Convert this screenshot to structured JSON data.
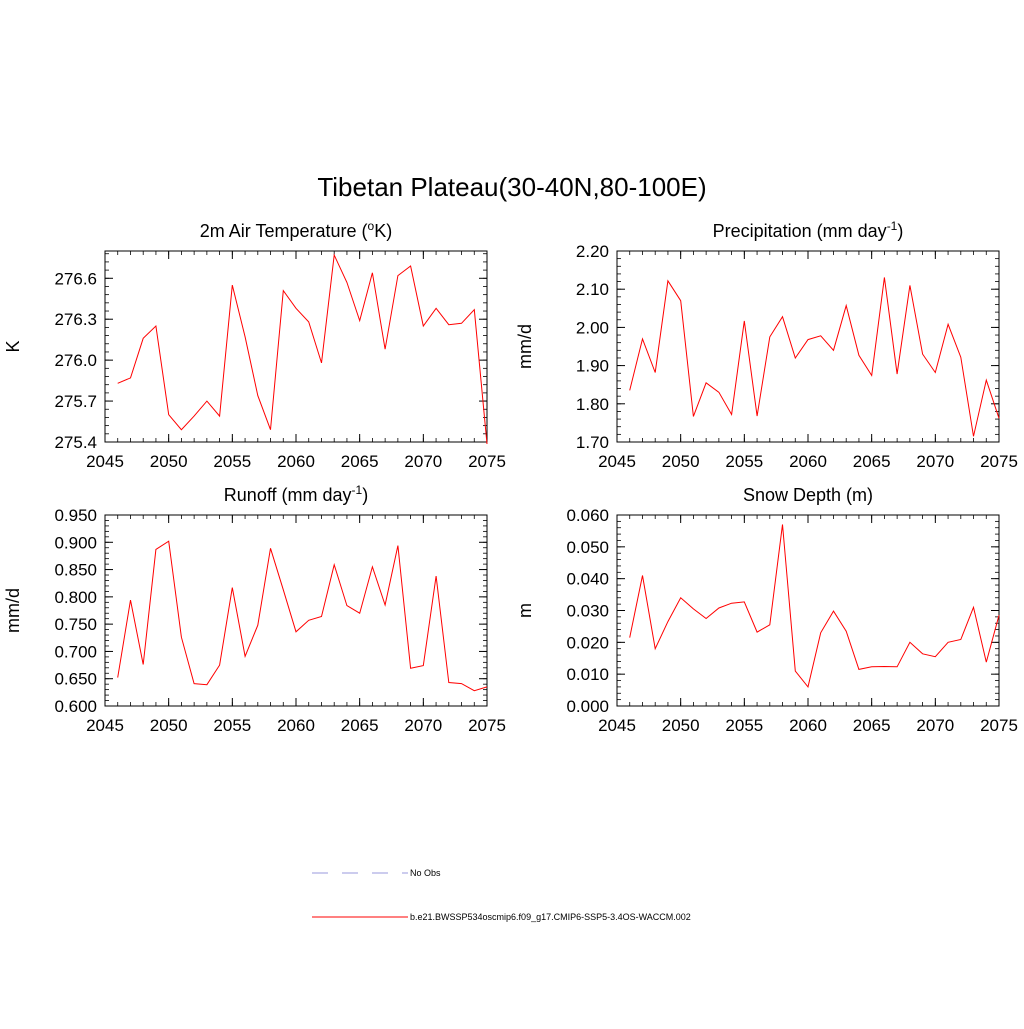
{
  "figure_title": "Tibetan Plateau(30-40N,80-100E)",
  "colors": {
    "series": "#ff0000",
    "obs": "#9999dd",
    "axis": "#000000"
  },
  "legend": [
    {
      "label": "No Obs",
      "style": "dashed",
      "color": "#9999dd"
    },
    {
      "label": "b.e21.BWSSP534oscmip6.f09_g17.CMIP6-SSP5-3.4OS-WACCM.002",
      "style": "solid",
      "color": "#ff0000"
    }
  ],
  "chart_data": [
    {
      "type": "line",
      "title": "2m Air Temperature (",
      "title_sup": "o",
      "title_after": "K)",
      "ylabel": "K",
      "xlim": [
        2045,
        2075
      ],
      "ylim": [
        275.4,
        276.8
      ],
      "xticks": [
        2045,
        2050,
        2055,
        2060,
        2065,
        2070,
        2075
      ],
      "xtick_labels": [
        "2045",
        "2050",
        "2055",
        "2060",
        "2065",
        "2070",
        "2075"
      ],
      "yticks": [
        275.4,
        275.7,
        276.0,
        276.3,
        276.6
      ],
      "ytick_labels": [
        "275.4",
        "275.7",
        "276.0",
        "276.3",
        "276.6"
      ],
      "series": [
        {
          "x": [
            2046,
            2047,
            2048,
            2049,
            2050,
            2051,
            2052,
            2053,
            2054,
            2055,
            2056,
            2057,
            2058,
            2059,
            2060,
            2061,
            2062,
            2063,
            2064,
            2065,
            2066,
            2067,
            2068,
            2069,
            2070,
            2071,
            2072,
            2073,
            2074,
            2075
          ],
          "values": [
            275.83,
            275.87,
            276.16,
            276.25,
            275.6,
            275.49,
            275.59,
            275.7,
            275.59,
            276.55,
            276.17,
            275.74,
            275.49,
            276.51,
            276.38,
            276.28,
            275.98,
            276.77,
            276.57,
            276.29,
            276.64,
            276.08,
            276.62,
            276.69,
            276.25,
            276.38,
            276.26,
            276.27,
            276.37,
            275.37
          ]
        }
      ]
    },
    {
      "type": "line",
      "title": "Precipitation (mm day",
      "title_sup": "-1",
      "title_after": ")",
      "ylabel": "mm/d",
      "xlim": [
        2045,
        2075
      ],
      "ylim": [
        1.7,
        2.2
      ],
      "xticks": [
        2045,
        2050,
        2055,
        2060,
        2065,
        2070,
        2075
      ],
      "xtick_labels": [
        "2045",
        "2050",
        "2055",
        "2060",
        "2065",
        "2070",
        "2075"
      ],
      "yticks": [
        1.7,
        1.8,
        1.9,
        2.0,
        2.1,
        2.2
      ],
      "ytick_labels": [
        "1.70",
        "1.80",
        "1.90",
        "2.00",
        "2.10",
        "2.20"
      ],
      "series": [
        {
          "x": [
            2046,
            2047,
            2048,
            2049,
            2050,
            2051,
            2052,
            2053,
            2054,
            2055,
            2056,
            2057,
            2058,
            2059,
            2060,
            2061,
            2062,
            2063,
            2064,
            2065,
            2066,
            2067,
            2068,
            2069,
            2070,
            2071,
            2072,
            2073,
            2074,
            2075
          ],
          "values": [
            1.835,
            1.97,
            1.882,
            2.122,
            2.07,
            1.767,
            1.855,
            1.83,
            1.772,
            2.017,
            1.768,
            1.975,
            2.028,
            1.92,
            1.968,
            1.978,
            1.94,
            2.057,
            1.927,
            1.874,
            2.131,
            1.878,
            2.11,
            1.93,
            1.882,
            2.008,
            1.922,
            1.715,
            1.862,
            1.762
          ]
        }
      ]
    },
    {
      "type": "line",
      "title": "Runoff (mm day",
      "title_sup": "-1",
      "title_after": ")",
      "ylabel": "mm/d",
      "xlim": [
        2045,
        2075
      ],
      "ylim": [
        0.6,
        0.95
      ],
      "xticks": [
        2045,
        2050,
        2055,
        2060,
        2065,
        2070,
        2075
      ],
      "xtick_labels": [
        "2045",
        "2050",
        "2055",
        "2060",
        "2065",
        "2070",
        "2075"
      ],
      "yticks": [
        0.6,
        0.65,
        0.7,
        0.75,
        0.8,
        0.85,
        0.9,
        0.95
      ],
      "ytick_labels": [
        "0.600",
        "0.650",
        "0.700",
        "0.750",
        "0.800",
        "0.850",
        "0.900",
        "0.950"
      ],
      "series": [
        {
          "x": [
            2046,
            2047,
            2048,
            2049,
            2050,
            2051,
            2052,
            2053,
            2054,
            2055,
            2056,
            2057,
            2058,
            2059,
            2060,
            2061,
            2062,
            2063,
            2064,
            2065,
            2066,
            2067,
            2068,
            2069,
            2070,
            2071,
            2072,
            2073,
            2074,
            2075
          ],
          "values": [
            0.652,
            0.794,
            0.676,
            0.887,
            0.902,
            0.726,
            0.641,
            0.639,
            0.675,
            0.817,
            0.691,
            0.748,
            0.889,
            0.813,
            0.736,
            0.757,
            0.764,
            0.859,
            0.784,
            0.77,
            0.855,
            0.785,
            0.894,
            0.669,
            0.674,
            0.838,
            0.643,
            0.641,
            0.628,
            0.635
          ]
        }
      ]
    },
    {
      "type": "line",
      "title": "Snow Depth (m)",
      "title_sup": "",
      "title_after": "",
      "ylabel": "m",
      "xlim": [
        2045,
        2075
      ],
      "ylim": [
        0.0,
        0.06
      ],
      "xticks": [
        2045,
        2050,
        2055,
        2060,
        2065,
        2070,
        2075
      ],
      "xtick_labels": [
        "2045",
        "2050",
        "2055",
        "2060",
        "2065",
        "2070",
        "2075"
      ],
      "yticks": [
        0.0,
        0.01,
        0.02,
        0.03,
        0.04,
        0.05,
        0.06
      ],
      "ytick_labels": [
        "0.000",
        "0.010",
        "0.020",
        "0.030",
        "0.040",
        "0.050",
        "0.060"
      ],
      "series": [
        {
          "x": [
            2046,
            2047,
            2048,
            2049,
            2050,
            2051,
            2052,
            2053,
            2054,
            2055,
            2056,
            2057,
            2058,
            2059,
            2060,
            2061,
            2062,
            2063,
            2064,
            2065,
            2066,
            2067,
            2068,
            2069,
            2070,
            2071,
            2072,
            2073,
            2074,
            2075
          ],
          "values": [
            0.0215,
            0.041,
            0.018,
            0.0265,
            0.034,
            0.0305,
            0.0275,
            0.0308,
            0.0323,
            0.0327,
            0.0232,
            0.0255,
            0.057,
            0.011,
            0.006,
            0.023,
            0.0298,
            0.0235,
            0.0115,
            0.0123,
            0.0124,
            0.0123,
            0.02,
            0.0164,
            0.0155,
            0.02,
            0.0209,
            0.031,
            0.0138,
            0.0285
          ]
        }
      ]
    }
  ]
}
